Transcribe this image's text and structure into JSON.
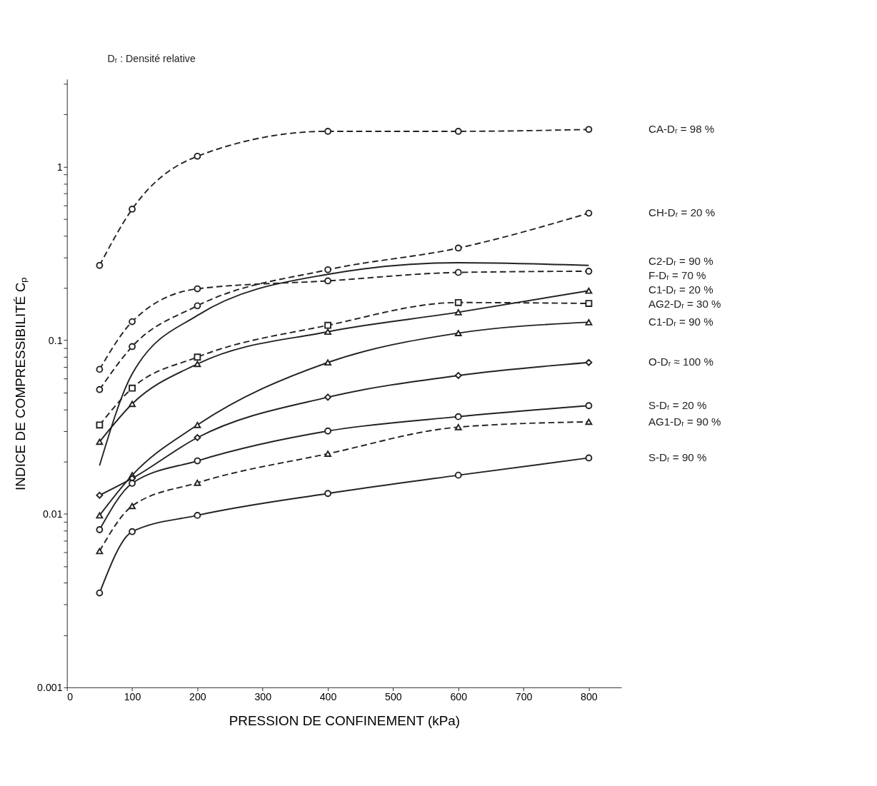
{
  "chart_data": {
    "type": "line",
    "annotations": [
      "Dᵣ : Densité relative"
    ],
    "xlabel": "PRESSION DE CONFINEMENT (kPa)",
    "ylabel": "INDICE DE COMPRESSIBILITÉ Cₚ",
    "x": [
      50,
      100,
      200,
      400,
      600,
      800
    ],
    "xlim": [
      0,
      850
    ],
    "xticks": [
      0,
      100,
      200,
      300,
      400,
      500,
      600,
      700,
      800
    ],
    "ylim": [
      0.001,
      3.2
    ],
    "log": true,
    "yticks": [
      0.001,
      {
        "value": 0.002,
        "label": null
      },
      {
        "value": 0.003,
        "label": null
      },
      {
        "value": 0.004,
        "label": null
      },
      {
        "value": 0.005,
        "label": null
      },
      {
        "value": 0.006,
        "label": null
      },
      {
        "value": 0.007,
        "label": null
      },
      {
        "value": 0.008,
        "label": null
      },
      {
        "value": 0.009,
        "label": null
      },
      0.01,
      {
        "value": 0.02,
        "label": null
      },
      {
        "value": 0.03,
        "label": null
      },
      {
        "value": 0.04,
        "label": null
      },
      {
        "value": 0.05,
        "label": null
      },
      {
        "value": 0.06,
        "label": null
      },
      {
        "value": 0.07,
        "label": null
      },
      {
        "value": 0.08,
        "label": null
      },
      {
        "value": 0.09,
        "label": null
      },
      0.1,
      {
        "value": 0.2,
        "label": null
      },
      {
        "value": 0.3,
        "label": null
      },
      {
        "value": 0.4,
        "label": null
      },
      {
        "value": 0.5,
        "label": null
      },
      {
        "value": 0.6,
        "label": null
      },
      {
        "value": 0.7,
        "label": null
      },
      {
        "value": 0.8,
        "label": null
      },
      {
        "value": 0.9,
        "label": null
      },
      1,
      {
        "value": 2,
        "label": null
      },
      {
        "value": 3,
        "label": null
      }
    ],
    "grid": false,
    "legend": false,
    "series": [
      {
        "name": "CA-Dᵣ = 98 %",
        "color": "#222222",
        "line_style": "dashed",
        "marker": "circle",
        "values": [
          0.27,
          0.57,
          1.15,
          1.6,
          1.6,
          1.64
        ]
      },
      {
        "name": "CH-Dᵣ = 20 %",
        "color": "#222222",
        "line_style": "dashed",
        "marker": "circle",
        "values": [
          0.052,
          0.092,
          0.158,
          0.255,
          0.34,
          0.54
        ]
      },
      {
        "name": "C2-Dᵣ = 90 %",
        "color": "#222222",
        "line_style": "solid",
        "marker": "none",
        "values": [
          0.019,
          0.064,
          0.139,
          0.24,
          0.28,
          0.27
        ]
      },
      {
        "name": "F-Dᵣ = 70 %",
        "color": "#222222",
        "line_style": "dashed",
        "marker": "circle",
        "values": [
          0.068,
          0.128,
          0.198,
          0.22,
          0.246,
          0.25
        ]
      },
      {
        "name": "C1-Dᵣ = 20 %",
        "color": "#222222",
        "line_style": "solid",
        "marker": "triangle",
        "values": [
          0.026,
          0.043,
          0.073,
          0.112,
          0.145,
          0.193
        ]
      },
      {
        "name": "AG2-Dᵣ = 30 %",
        "color": "#222222",
        "line_style": "dashed",
        "marker": "square",
        "values": [
          0.0325,
          0.053,
          0.08,
          0.122,
          0.165,
          0.163
        ]
      },
      {
        "name": "C1-Dᵣ = 90 %",
        "color": "#222222",
        "line_style": "solid",
        "marker": "triangle",
        "values": [
          0.0098,
          0.0167,
          0.0325,
          0.0745,
          0.11,
          0.127
        ]
      },
      {
        "name": "O-Dᵣ ≈ 100 %",
        "color": "#222222",
        "line_style": "solid",
        "marker": "diamond",
        "values": [
          0.0128,
          0.016,
          0.0275,
          0.047,
          0.0627,
          0.0745
        ]
      },
      {
        "name": "S-Dᵣ = 20 %",
        "color": "#222222",
        "line_style": "solid",
        "marker": "circle",
        "values": [
          0.0081,
          0.015,
          0.0202,
          0.03,
          0.0363,
          0.042
        ]
      },
      {
        "name": "AG1-Dᵣ = 90 %",
        "color": "#222222",
        "line_style": "dashed",
        "marker": "triangle",
        "values": [
          0.0061,
          0.0111,
          0.0151,
          0.0222,
          0.0316,
          0.0339
        ]
      },
      {
        "name": "S-Dᵣ = 90 %",
        "color": "#222222",
        "line_style": "solid",
        "marker": "circle",
        "values": [
          0.0035,
          0.0079,
          0.0098,
          0.0131,
          0.0167,
          0.021
        ]
      }
    ]
  }
}
